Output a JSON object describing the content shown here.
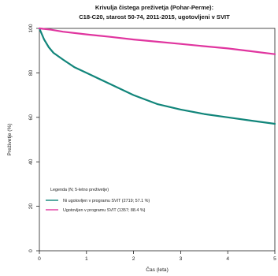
{
  "chart_data": {
    "type": "line",
    "title_lines": [
      "Krivulja čistega preživetja (Pohar-Perme):",
      "C18-C20, starost 50-74, 2011-2015, ugotovljeni v SVIT"
    ],
    "xlabel": "Čas (leta)",
    "ylabel": "Preživetje (%)",
    "xlim": [
      0,
      5
    ],
    "ylim": [
      0,
      100
    ],
    "x_ticks": [
      "0",
      "1",
      "2",
      "3",
      "4",
      "5"
    ],
    "y_ticks": [
      "0",
      "20",
      "40",
      "60",
      "80",
      "100"
    ],
    "legend_title": "Legenda (N; 5-letno preživetje)",
    "legend_position": "bottom-left",
    "series": [
      {
        "name": "Ni ugotovljen v programu SVIT (2719; 57.1 %)",
        "color": "#11857a",
        "x": [
          0,
          0.1,
          0.2,
          0.3,
          0.5,
          0.75,
          1.0,
          1.5,
          2.0,
          2.5,
          3.0,
          3.5,
          4.0,
          4.5,
          5.0
        ],
        "values": [
          100,
          95,
          91.5,
          89,
          86,
          82.5,
          80,
          75,
          70,
          66,
          63.5,
          61.5,
          60,
          58.5,
          57.1
        ]
      },
      {
        "name": "Ugotovljen v programu SVIT (1357; 88.4 %)",
        "color": "#e0359f",
        "x": [
          0,
          0.25,
          0.5,
          1.0,
          1.5,
          2.0,
          2.5,
          3.0,
          3.5,
          4.0,
          4.5,
          5.0
        ],
        "values": [
          100,
          99.4,
          98.5,
          97.3,
          96.2,
          95,
          94,
          93,
          92,
          91,
          89.7,
          88.4
        ]
      }
    ]
  }
}
